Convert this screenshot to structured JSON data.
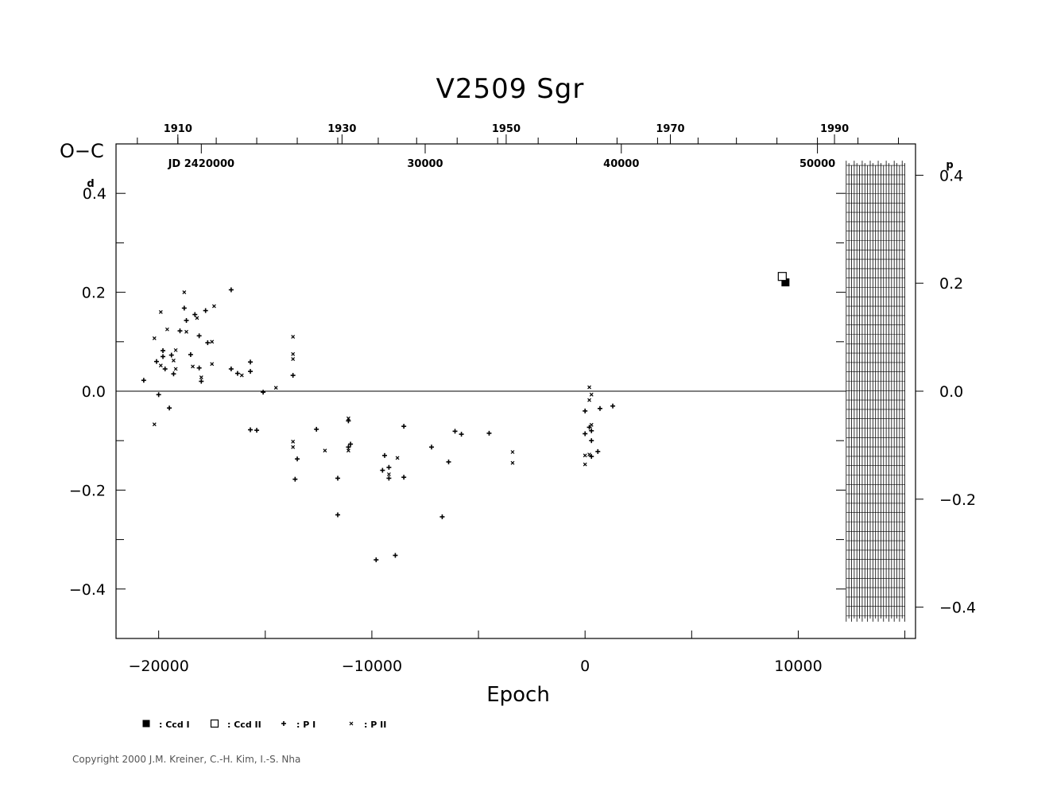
{
  "chart_data": {
    "type": "scatter",
    "title": "V2509  Sgr",
    "ylabel": "O−C",
    "ylabel_unit_left": "d",
    "ylabel_unit_right": "p",
    "xlabel": "Epoch",
    "xlim": [
      -22000,
      15500
    ],
    "ylim": [
      -0.5,
      0.5
    ],
    "x_ticks": [
      {
        "v": -20000,
        "label": "−20000"
      },
      {
        "v": -10000,
        "label": "−10000"
      },
      {
        "v": 0,
        "label": "0"
      },
      {
        "v": 10000,
        "label": "10000"
      }
    ],
    "x_minor_ticks": [
      -15000,
      -5000,
      5000,
      15000
    ],
    "y_ticks": [
      {
        "v": 0.4,
        "label": "0.4"
      },
      {
        "v": 0.2,
        "label": "0.2"
      },
      {
        "v": 0.0,
        "label": "0.0"
      },
      {
        "v": -0.2,
        "label": "−0.2"
      },
      {
        "v": -0.4,
        "label": "−0.4"
      }
    ],
    "y_minor_ticks": [
      0.3,
      0.1,
      -0.1,
      -0.3
    ],
    "right_ticks": [
      {
        "v": 0.4,
        "label": "0.4"
      },
      {
        "v": 0.2,
        "label": "0.2"
      },
      {
        "v": 0.0,
        "label": "0.0"
      },
      {
        "v": -0.2,
        "label": "−0.2"
      },
      {
        "v": -0.4,
        "label": "−0.4"
      }
    ],
    "right_ylim": [
      -0.458,
      0.458
    ],
    "top_year_ticks": [
      {
        "v": -19100,
        "label": "1910"
      },
      {
        "v": -11400,
        "label": "1930"
      },
      {
        "v": -3700,
        "label": "1950"
      },
      {
        "v": 4000,
        "label": "1970"
      },
      {
        "v": 11700,
        "label": "1990"
      }
    ],
    "top_year_minor_ticks": [
      -21000,
      -19100,
      -17300,
      -15400,
      -13500,
      -11600,
      -9700,
      -7900,
      -6000,
      -4100,
      -2200,
      -400,
      1500,
      3400,
      5300,
      7100,
      9000,
      10900,
      12800,
      14700
    ],
    "top_jd_ticks": [
      {
        "v": -18000,
        "label": "JD  2420000"
      },
      {
        "v": -7500,
        "label": "30000"
      },
      {
        "v": 1700,
        "label": "40000"
      },
      {
        "v": 10900,
        "label": "50000"
      }
    ],
    "hatch_region": {
      "x_start": 12250,
      "x_end": 15000,
      "y_min": -0.45,
      "y_max": 0.45
    },
    "zero_line": true,
    "series": [
      {
        "name": "Ccd I",
        "marker": "filled-square",
        "points": [
          [
            9400,
            0.22
          ]
        ]
      },
      {
        "name": "Ccd II",
        "marker": "open-square",
        "points": [
          [
            9250,
            0.232
          ]
        ]
      },
      {
        "name": "P I",
        "marker": "plus",
        "points": [
          [
            -20700,
            0.022
          ],
          [
            -20100,
            0.06
          ],
          [
            -20000,
            -0.007
          ],
          [
            -19800,
            0.082
          ],
          [
            -19700,
            0.045
          ],
          [
            -19800,
            0.07
          ],
          [
            -19500,
            -0.034
          ],
          [
            -19400,
            0.073
          ],
          [
            -19300,
            0.035
          ],
          [
            -19000,
            0.122
          ],
          [
            -18800,
            0.168
          ],
          [
            -18700,
            0.143
          ],
          [
            -18500,
            0.074
          ],
          [
            -18300,
            0.155
          ],
          [
            -18100,
            0.112
          ],
          [
            -18100,
            0.047
          ],
          [
            -18000,
            0.02
          ],
          [
            -17800,
            0.163
          ],
          [
            -17700,
            0.098
          ],
          [
            -16600,
            0.205
          ],
          [
            -16600,
            0.045
          ],
          [
            -16300,
            0.036
          ],
          [
            -15700,
            0.059
          ],
          [
            -15700,
            -0.078
          ],
          [
            -15700,
            0.04
          ],
          [
            -15400,
            -0.079
          ],
          [
            -15100,
            -0.002
          ],
          [
            -13700,
            0.032
          ],
          [
            -13500,
            -0.137
          ],
          [
            -13600,
            -0.178
          ],
          [
            -12600,
            -0.077
          ],
          [
            -11600,
            -0.176
          ],
          [
            -11600,
            -0.25
          ],
          [
            -11100,
            -0.06
          ],
          [
            -11100,
            -0.113
          ],
          [
            -11000,
            -0.107
          ],
          [
            -9800,
            -0.341
          ],
          [
            -9500,
            -0.16
          ],
          [
            -9400,
            -0.13
          ],
          [
            -9200,
            -0.176
          ],
          [
            -9200,
            -0.154
          ],
          [
            -8900,
            -0.332
          ],
          [
            -8500,
            -0.071
          ],
          [
            -8500,
            -0.174
          ],
          [
            -7200,
            -0.113
          ],
          [
            -6700,
            -0.254
          ],
          [
            -6400,
            -0.143
          ],
          [
            -6100,
            -0.081
          ],
          [
            -5800,
            -0.087
          ],
          [
            -4500,
            -0.085
          ],
          [
            0,
            -0.04
          ],
          [
            0,
            -0.086
          ],
          [
            200,
            -0.073
          ],
          [
            300,
            -0.08
          ],
          [
            300,
            -0.1
          ],
          [
            300,
            -0.132
          ],
          [
            600,
            -0.122
          ],
          [
            700,
            -0.035
          ],
          [
            1300,
            -0.03
          ]
        ]
      },
      {
        "name": "P II",
        "marker": "cross",
        "points": [
          [
            -20200,
            -0.067
          ],
          [
            -20200,
            0.107
          ],
          [
            -19900,
            0.052
          ],
          [
            -19900,
            0.16
          ],
          [
            -19600,
            0.125
          ],
          [
            -19300,
            0.062
          ],
          [
            -19200,
            0.083
          ],
          [
            -19200,
            0.045
          ],
          [
            -18800,
            0.2
          ],
          [
            -18700,
            0.12
          ],
          [
            -18400,
            0.05
          ],
          [
            -18200,
            0.148
          ],
          [
            -18000,
            0.028
          ],
          [
            -17500,
            0.1
          ],
          [
            -17500,
            0.055
          ],
          [
            -17400,
            0.172
          ],
          [
            -16100,
            0.032
          ],
          [
            -14500,
            0.007
          ],
          [
            -13700,
            0.11
          ],
          [
            -13700,
            0.075
          ],
          [
            -13700,
            0.065
          ],
          [
            -13700,
            -0.102
          ],
          [
            -13700,
            -0.113
          ],
          [
            -12200,
            -0.12
          ],
          [
            -11100,
            -0.055
          ],
          [
            -11100,
            -0.12
          ],
          [
            -9200,
            -0.168
          ],
          [
            -8800,
            -0.135
          ],
          [
            -3400,
            -0.123
          ],
          [
            -3400,
            -0.145
          ],
          [
            200,
            0.008
          ],
          [
            200,
            -0.018
          ],
          [
            300,
            -0.007
          ],
          [
            200,
            -0.128
          ],
          [
            0,
            -0.13
          ],
          [
            0,
            -0.148
          ],
          [
            300,
            -0.068
          ]
        ]
      }
    ],
    "legend": [
      {
        "marker": "filled-square",
        "label": ": Ccd  I"
      },
      {
        "marker": "open-square",
        "label": ": Ccd  II"
      },
      {
        "marker": "plus",
        "label": ": P  I"
      },
      {
        "marker": "cross",
        "label": ": P  II"
      }
    ]
  },
  "copyright": "Copyright 2000 J.M. Kreiner, C.-H. Kim, I.-S. Nha"
}
